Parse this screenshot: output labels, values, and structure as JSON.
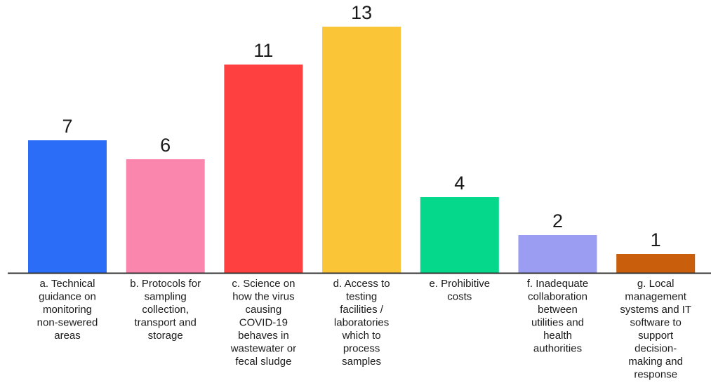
{
  "chart_data": {
    "type": "bar",
    "title": "",
    "xlabel": "",
    "ylabel": "",
    "ylim": [
      0,
      13
    ],
    "grid": false,
    "legend": "none",
    "categories": [
      "a. Technical guidance on monitoring non-sewered areas",
      "b. Protocols for sampling collection, transport and storage",
      "c. Science on how the virus causing COVID-19 behaves in wastewater or fecal sludge",
      "d. Access to testing facilities / laboratories which to process samples",
      "e. Prohibitive costs",
      "f. Inadequate collaboration between utilities and health authorities",
      "g. Local management systems and IT software to support decision-making and response"
    ],
    "category_lines": [
      [
        "a. Technical",
        "guidance on",
        "monitoring",
        "non-sewered",
        "areas"
      ],
      [
        "b. Protocols for",
        "sampling",
        "collection,",
        "transport and",
        "storage"
      ],
      [
        "c. Science on",
        "how the virus",
        "causing",
        "COVID-19",
        "behaves in",
        "wastewater or",
        "fecal sludge"
      ],
      [
        "d. Access to",
        "testing",
        "facilities /",
        "laboratories",
        "which to",
        "process",
        "samples"
      ],
      [
        "e. Prohibitive",
        "costs"
      ],
      [
        "f. Inadequate",
        "collaboration",
        "between",
        "utilities and",
        "health",
        "authorities"
      ],
      [
        "g. Local",
        "management",
        "systems and IT",
        "software to",
        "support",
        "decision-",
        "making and",
        "response"
      ]
    ],
    "values": [
      7,
      6,
      11,
      13,
      4,
      2,
      1
    ],
    "colors": [
      "#2b6df7",
      "#fb86ad",
      "#ff4040",
      "#fbc538",
      "#05d88b",
      "#9a9df1",
      "#c95e0c"
    ]
  }
}
